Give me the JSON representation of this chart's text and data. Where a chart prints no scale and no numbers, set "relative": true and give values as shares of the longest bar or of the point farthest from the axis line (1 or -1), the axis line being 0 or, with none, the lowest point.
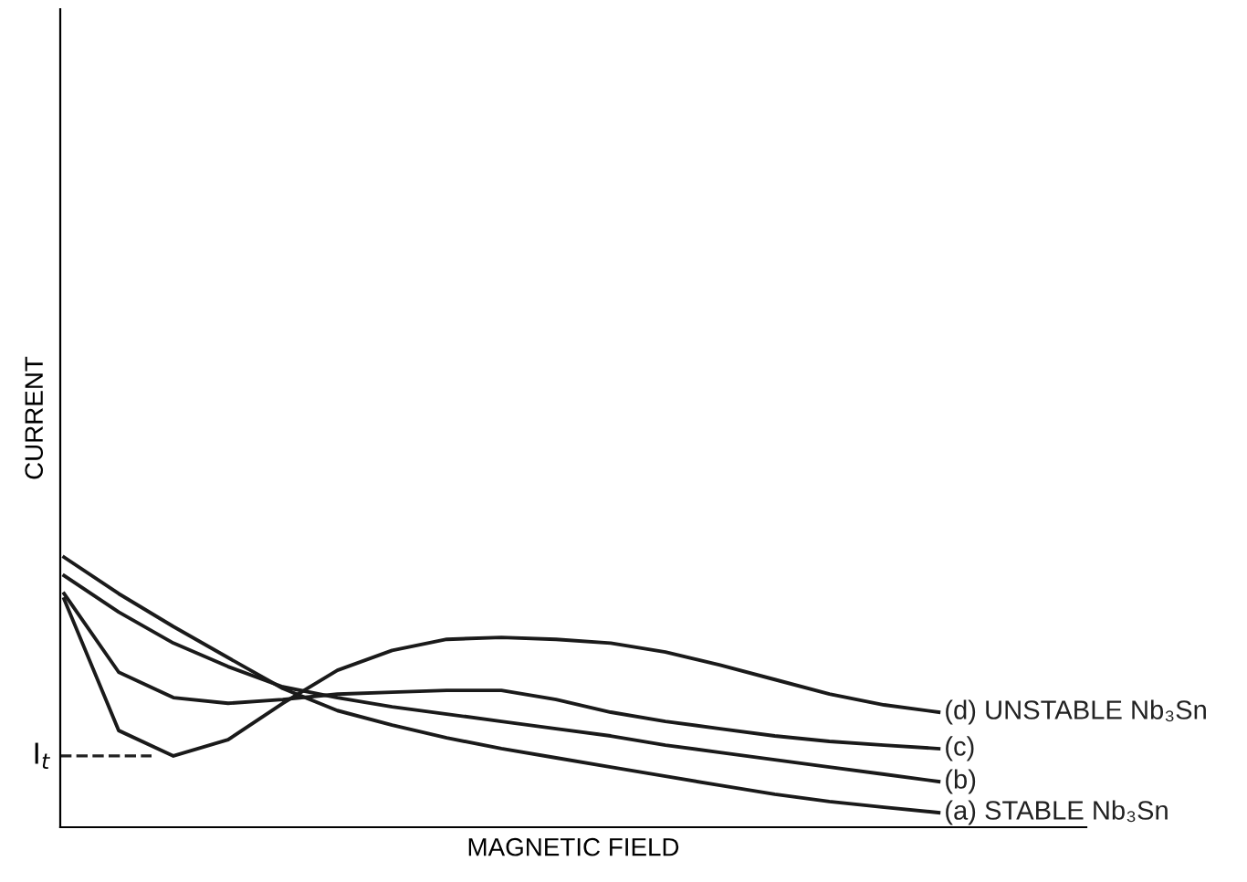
{
  "chart_data": {
    "type": "line",
    "relative": true,
    "xlabel": "MAGNETIC FIELD",
    "ylabel": "CURRENT",
    "categories": [
      null,
      null,
      null,
      null,
      null,
      null,
      null,
      null,
      null,
      null,
      null,
      null,
      null,
      null,
      null,
      null,
      null
    ],
    "series": [
      {
        "name": "(a) STABLE Nb₃Sn",
        "color": "#1a1a1a",
        "values": [
          1,
          0.865,
          0.743,
          0.628,
          0.514,
          0.432,
          0.378,
          0.331,
          0.291,
          0.257,
          0.223,
          0.189,
          0.155,
          0.122,
          0.095,
          0.074,
          0.054
        ]
      },
      {
        "name": "(b)",
        "color": "#1a1a1a",
        "values": [
          0.932,
          0.797,
          0.682,
          0.595,
          0.52,
          0.48,
          0.446,
          0.419,
          0.392,
          0.365,
          0.338,
          0.304,
          0.277,
          0.25,
          0.223,
          0.196,
          0.169
        ]
      },
      {
        "name": "(c)",
        "color": "#1a1a1a",
        "values": [
          0.865,
          0.574,
          0.48,
          0.459,
          0.473,
          0.493,
          0.5,
          0.507,
          0.507,
          0.473,
          0.426,
          0.392,
          0.365,
          0.338,
          0.318,
          0.304,
          0.291
        ]
      },
      {
        "name": "(d) UNSTABLE Nb₃Sn",
        "color": "#1a1a1a",
        "values": [
          0.845,
          0.358,
          0.264,
          0.324,
          0.459,
          0.581,
          0.655,
          0.696,
          0.703,
          0.696,
          0.682,
          0.649,
          0.601,
          0.547,
          0.493,
          0.453,
          0.426
        ]
      }
    ],
    "annotations": [
      "I$_{t}$"
    ],
    "legend": false,
    "marker": "none",
    "line_style": "solid"
  }
}
